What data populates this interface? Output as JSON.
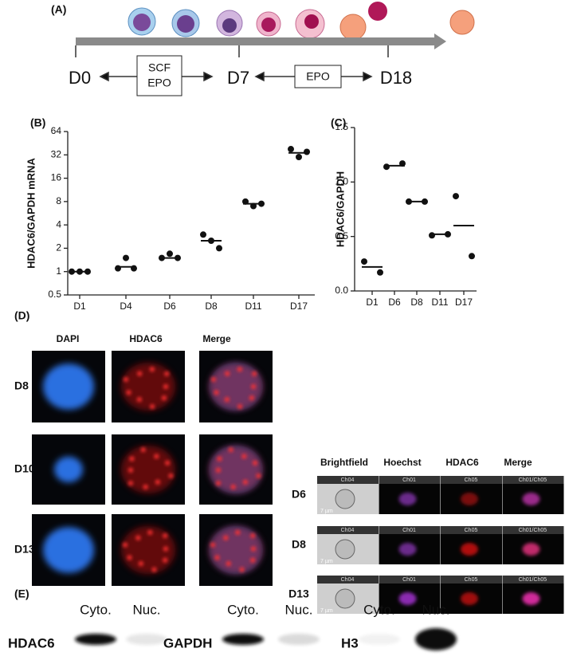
{
  "panel_a": {
    "label": "(A)",
    "days": [
      "D0",
      "D7",
      "D18"
    ],
    "box1": [
      "SCF",
      "EPO"
    ],
    "box2": "EPO"
  },
  "chart_data": [
    {
      "type": "strip",
      "panel_label": "(B)",
      "y_label": "HDAC6/GAPDH mRNA",
      "log_scale": true,
      "categories": [
        "D1",
        "D4",
        "D6",
        "D8",
        "D11",
        "D17"
      ],
      "points": [
        [
          1,
          1,
          1
        ],
        [
          1.1,
          1.5,
          1.1
        ],
        [
          1.5,
          1.7,
          1.5
        ],
        [
          3,
          2.5,
          2.0
        ],
        [
          8,
          7,
          7.5
        ],
        [
          38,
          30,
          35
        ]
      ],
      "means": [
        1,
        1.15,
        1.5,
        2.5,
        7.5,
        34
      ],
      "ylim": [
        0.5,
        64
      ],
      "yticks": [
        0.5,
        1,
        2,
        4,
        8,
        16,
        32,
        64
      ],
      "color": "#111111"
    },
    {
      "type": "strip",
      "panel_label": "(C)",
      "y_label": "HDAC6/GAPDH",
      "log_scale": false,
      "categories": [
        "D1",
        "D6",
        "D8",
        "D11",
        "D17"
      ],
      "points": [
        [
          0.27,
          0.17
        ],
        [
          1.14,
          1.17
        ],
        [
          0.82,
          0.82
        ],
        [
          0.51,
          0.52
        ],
        [
          0.87,
          0.32
        ]
      ],
      "means": [
        0.22,
        1.15,
        0.82,
        0.52,
        0.6
      ],
      "ylim": [
        0,
        1.5
      ],
      "yticks": [
        {
          "value": 0,
          "label": "0.0"
        },
        0.5,
        {
          "value": 1,
          "label": "1.0"
        },
        1.5
      ],
      "color": "#111111"
    }
  ],
  "panel_d": {
    "label": "(D)",
    "left_headers": [
      "DAPI",
      "HDAC6",
      "Merge"
    ],
    "left_rows": [
      "D8",
      "D10",
      "D13"
    ],
    "right_headers": [
      "Brightfield",
      "Hoechst",
      "HDAC6",
      "Merge"
    ],
    "right_rows": [
      "D6",
      "D8",
      "D13"
    ],
    "channels": [
      "Ch04",
      "Ch01",
      "Ch05",
      "Ch01/Ch05"
    ],
    "scale": "7 µm"
  },
  "panel_e": {
    "label": "(E)",
    "fractions": [
      "Cyto.",
      "Nuc."
    ],
    "proteins": [
      "HDAC6",
      "GAPDH",
      "H3"
    ]
  }
}
